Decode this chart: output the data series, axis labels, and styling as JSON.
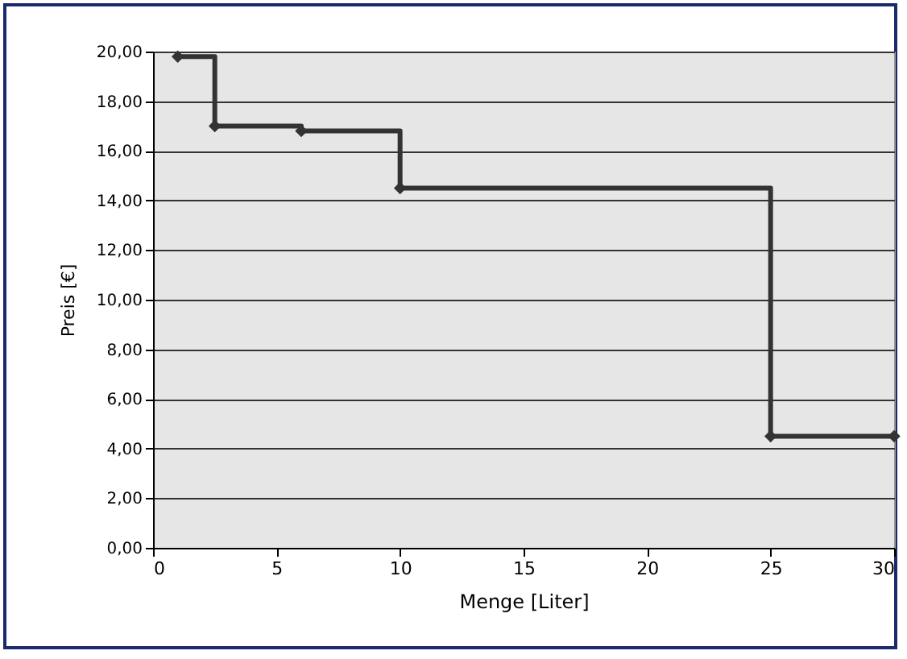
{
  "chart_data": {
    "type": "step",
    "xlabel": "Menge [Liter]",
    "ylabel": "Preis [€]",
    "x": [
      1,
      2.5,
      6,
      10,
      25,
      30
    ],
    "series": [
      {
        "color": "#333333",
        "values": [
          19.8,
          17.0,
          16.8,
          14.5,
          4.5,
          4.5
        ]
      }
    ],
    "xlim": [
      0,
      30
    ],
    "xticks": [
      0,
      5,
      10,
      15,
      20,
      25,
      30
    ],
    "ylim": [
      0,
      20
    ],
    "yticks": [
      {
        "value": 0,
        "label": "0,00"
      },
      {
        "value": 2,
        "label": "2,00"
      },
      {
        "value": 4,
        "label": "4,00"
      },
      {
        "value": 6,
        "label": "6,00"
      },
      {
        "value": 8,
        "label": "8,00"
      },
      {
        "value": 10,
        "label": "10,00"
      },
      {
        "value": 12,
        "label": "12,00"
      },
      {
        "value": 14,
        "label": "14,00"
      },
      {
        "value": 16,
        "label": "16,00"
      },
      {
        "value": 18,
        "label": "18,00"
      },
      {
        "value": 20,
        "label": "20,00"
      }
    ],
    "grid": "y",
    "marker": "diamond",
    "line_style": "solid"
  }
}
